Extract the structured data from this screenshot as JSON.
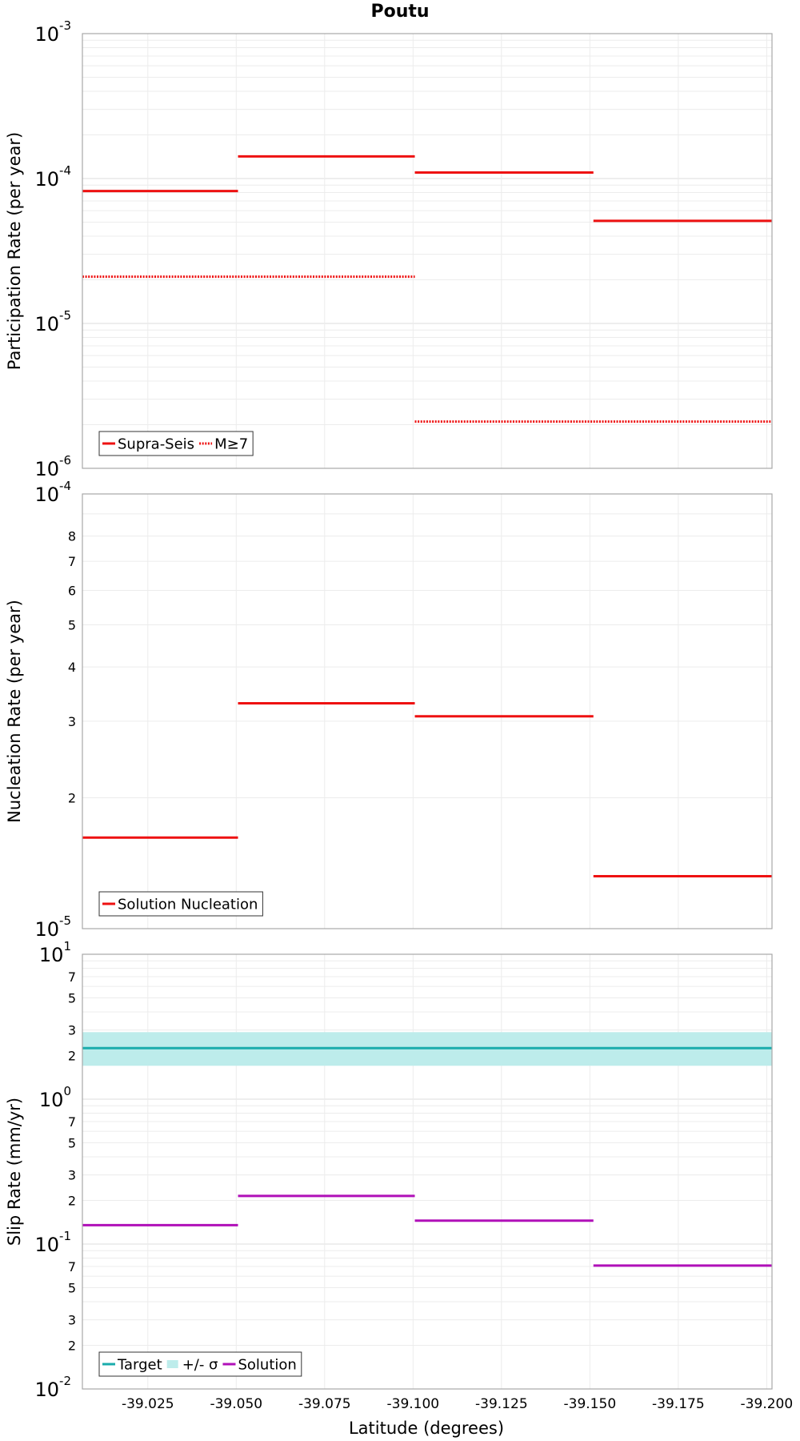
{
  "title": "Poutu",
  "xlabel": "Latitude (degrees)",
  "chart_data": [
    {
      "type": "line",
      "ylabel": "Participation Rate (per year)",
      "yscale": "log",
      "ylim": [
        1e-06,
        0.001
      ],
      "xlim": [
        -39.0065,
        -39.2015
      ],
      "x_ticks": [
        -39.025,
        -39.05,
        -39.075,
        -39.1,
        -39.125,
        -39.15,
        -39.175,
        -39.2
      ],
      "x_tick_labels": [
        "-39.025",
        "-39.050",
        "-39.075",
        "-39.100",
        "-39.125",
        "-39.150",
        "-39.175",
        "-39.200"
      ],
      "y_major_ticks": [
        {
          "value": 0.001,
          "base": "10",
          "exp": "-3"
        },
        {
          "value": 0.0001,
          "base": "10",
          "exp": "-4"
        },
        {
          "value": 1e-05,
          "base": "10",
          "exp": "-5"
        },
        {
          "value": 1e-06,
          "base": "10",
          "exp": "-6"
        }
      ],
      "y_minor_labels": [],
      "grid": true,
      "legend_position": "bottom-left",
      "series": [
        {
          "name": "Supra-Seis",
          "color": "#ee1111",
          "style": "solid",
          "segments": [
            {
              "x0": -39.0065,
              "x1": -39.0505,
              "y": 8.2e-05
            },
            {
              "x0": -39.0505,
              "x1": -39.1005,
              "y": 0.000142
            },
            {
              "x0": -39.1005,
              "x1": -39.151,
              "y": 0.00011
            },
            {
              "x0": -39.151,
              "x1": -39.2015,
              "y": 5.1e-05
            }
          ]
        },
        {
          "name": "M≥7",
          "color": "#ee1111",
          "style": "dotted",
          "segments": [
            {
              "x0": -39.0065,
              "x1": -39.1005,
              "y": 2.1e-05
            },
            {
              "x0": -39.1005,
              "x1": -39.2015,
              "y": 2.1e-06
            }
          ]
        }
      ]
    },
    {
      "type": "line",
      "ylabel": "Nucleation Rate (per year)",
      "yscale": "log",
      "ylim": [
        1e-05,
        0.0001
      ],
      "xlim": [
        -39.0065,
        -39.2015
      ],
      "y_major_ticks": [
        {
          "value": 0.0001,
          "base": "10",
          "exp": "-4"
        },
        {
          "value": 1e-05,
          "base": "10",
          "exp": "-5"
        }
      ],
      "y_minor_labels": [
        {
          "value": 8e-05,
          "label": "8"
        },
        {
          "value": 7e-05,
          "label": "7"
        },
        {
          "value": 6e-05,
          "label": "6"
        },
        {
          "value": 5e-05,
          "label": "5"
        },
        {
          "value": 4e-05,
          "label": "4"
        },
        {
          "value": 3e-05,
          "label": "3"
        },
        {
          "value": 2e-05,
          "label": "2"
        }
      ],
      "grid": true,
      "legend_position": "bottom-left",
      "series": [
        {
          "name": "Solution Nucleation",
          "color": "#ee1111",
          "style": "solid",
          "segments": [
            {
              "x0": -39.0065,
              "x1": -39.0505,
              "y": 1.62e-05
            },
            {
              "x0": -39.0505,
              "x1": -39.1005,
              "y": 3.3e-05
            },
            {
              "x0": -39.1005,
              "x1": -39.151,
              "y": 3.08e-05
            },
            {
              "x0": -39.151,
              "x1": -39.2015,
              "y": 1.32e-05
            }
          ]
        }
      ]
    },
    {
      "type": "line",
      "ylabel": "Slip Rate (mm/yr)",
      "xlabel": "Latitude (degrees)",
      "yscale": "log",
      "ylim": [
        0.01,
        10
      ],
      "xlim": [
        -39.0065,
        -39.2015
      ],
      "y_major_ticks": [
        {
          "value": 10,
          "base": "10",
          "exp": "1"
        },
        {
          "value": 1,
          "base": "10",
          "exp": "0"
        },
        {
          "value": 0.1,
          "base": "10",
          "exp": "-1"
        },
        {
          "value": 0.01,
          "base": "10",
          "exp": "-2"
        }
      ],
      "y_minor_labels": [
        {
          "value": 7,
          "label": "7"
        },
        {
          "value": 5,
          "label": "5"
        },
        {
          "value": 3,
          "label": "3"
        },
        {
          "value": 2,
          "label": "2"
        },
        {
          "value": 0.7,
          "label": "7"
        },
        {
          "value": 0.5,
          "label": "5"
        },
        {
          "value": 0.3,
          "label": "3"
        },
        {
          "value": 0.2,
          "label": "2"
        },
        {
          "value": 0.07,
          "label": "7"
        },
        {
          "value": 0.05,
          "label": "5"
        },
        {
          "value": 0.03,
          "label": "3"
        },
        {
          "value": 0.02,
          "label": "2"
        }
      ],
      "grid": true,
      "legend_position": "bottom-left",
      "band": {
        "name": "+/- σ",
        "color": "#bdeceb",
        "y0": 1.7,
        "y1": 2.9,
        "x0": -39.0065,
        "x1": -39.2015
      },
      "series": [
        {
          "name": "Target",
          "color": "#1aacac",
          "style": "solid",
          "segments": [
            {
              "x0": -39.0065,
              "x1": -39.2015,
              "y": 2.25
            }
          ]
        },
        {
          "name": "Solution",
          "color": "#b010b8",
          "style": "solid",
          "segments": [
            {
              "x0": -39.0065,
              "x1": -39.0505,
              "y": 0.135
            },
            {
              "x0": -39.0505,
              "x1": -39.1005,
              "y": 0.215
            },
            {
              "x0": -39.1005,
              "x1": -39.151,
              "y": 0.145
            },
            {
              "x0": -39.151,
              "x1": -39.2015,
              "y": 0.071
            }
          ]
        }
      ],
      "legend_order": [
        "Target",
        "+/- σ",
        "Solution"
      ]
    }
  ]
}
